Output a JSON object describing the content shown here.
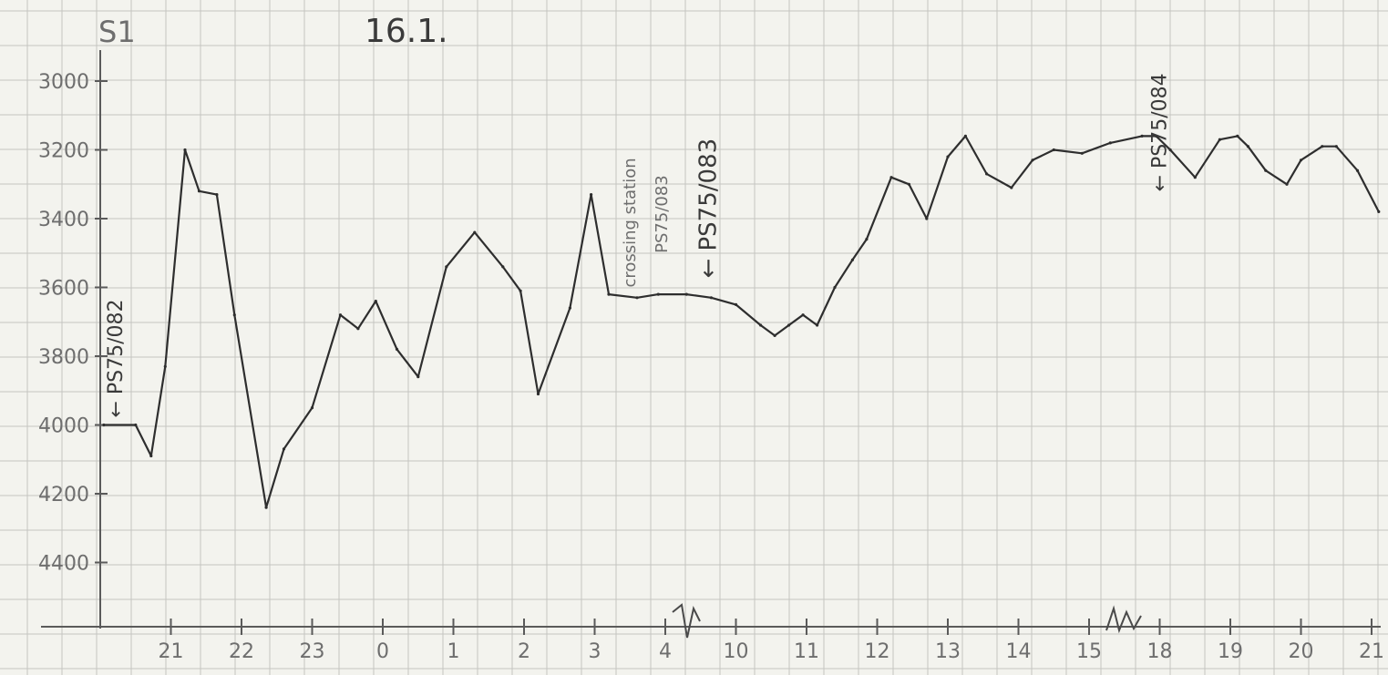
{
  "header": {
    "sheet_label": "S1",
    "date_label": "16.1."
  },
  "chart_data": {
    "type": "line",
    "ylabel": "",
    "xlabel": "",
    "y_axis": {
      "reversed": true,
      "ylim": [
        2900,
        4530
      ]
    },
    "yticks": [
      {
        "label": "3000",
        "value": 3000
      },
      {
        "label": "3200",
        "value": 3200
      },
      {
        "label": "3400",
        "value": 3400
      },
      {
        "label": "3600",
        "value": 3600
      },
      {
        "label": "3800",
        "value": 3800
      },
      {
        "label": "4000",
        "value": 4000
      },
      {
        "label": "4200",
        "value": 4200
      },
      {
        "label": "4400",
        "value": 4400
      }
    ],
    "x_axis": {
      "unit": "hour",
      "breaks_after": [
        "4",
        "15"
      ]
    },
    "xticks": [
      {
        "label": "21",
        "pos": 1
      },
      {
        "label": "22",
        "pos": 2
      },
      {
        "label": "23",
        "pos": 3
      },
      {
        "label": "0",
        "pos": 4
      },
      {
        "label": "1",
        "pos": 5
      },
      {
        "label": "2",
        "pos": 6
      },
      {
        "label": "3",
        "pos": 7
      },
      {
        "label": "4",
        "pos": 8
      },
      {
        "label": "10",
        "pos": 9
      },
      {
        "label": "11",
        "pos": 10
      },
      {
        "label": "12",
        "pos": 11
      },
      {
        "label": "13",
        "pos": 12
      },
      {
        "label": "14",
        "pos": 13
      },
      {
        "label": "15",
        "pos": 14
      },
      {
        "label": "18",
        "pos": 15
      },
      {
        "label": "19",
        "pos": 16
      },
      {
        "label": "20",
        "pos": 17
      },
      {
        "label": "21",
        "pos": 18
      }
    ],
    "series": [
      {
        "x": [
          0.05,
          0.5,
          0.72,
          0.92,
          1.2,
          1.4,
          1.65,
          1.9,
          2.35,
          2.6,
          3.0,
          3.4,
          3.65,
          3.9,
          4.2,
          4.5,
          4.9,
          5.3,
          5.7,
          5.95,
          6.2,
          6.65,
          6.95,
          7.2,
          7.6,
          7.9,
          8.3,
          8.65,
          9.0,
          9.35,
          9.55,
          9.75,
          9.95,
          10.15,
          10.4,
          10.65,
          10.85,
          11.2,
          11.45,
          11.7,
          12.0,
          12.25,
          12.55,
          12.9,
          13.2,
          13.5,
          13.9,
          14.3,
          14.75,
          14.95,
          15.15,
          15.5,
          15.85,
          16.1,
          16.25,
          16.5,
          16.8,
          17.0,
          17.3,
          17.5,
          17.8,
          18.1
        ],
        "y": [
          4000,
          4000,
          4090,
          3830,
          3200,
          3320,
          3330,
          3680,
          4240,
          4070,
          3950,
          3680,
          3720,
          3640,
          3780,
          3860,
          3540,
          3440,
          3540,
          3610,
          3910,
          3660,
          3330,
          3620,
          3630,
          3620,
          3620,
          3630,
          3650,
          3710,
          3740,
          3710,
          3680,
          3710,
          3600,
          3520,
          3460,
          3280,
          3300,
          3400,
          3220,
          3160,
          3270,
          3310,
          3230,
          3200,
          3210,
          3180,
          3160,
          3160,
          3200,
          3280,
          3170,
          3160,
          3190,
          3260,
          3300,
          3230,
          3190,
          3190,
          3260,
          3380
        ]
      }
    ],
    "annotations": [
      {
        "text": "← PS75/082",
        "x": 0.05,
        "y": 4000
      },
      {
        "text": "crossing station",
        "x": 7.7,
        "y": 3600
      },
      {
        "text": "PS75/083",
        "x": 8.1,
        "y": 3500
      },
      {
        "text": "← PS75/083",
        "x": 8.3,
        "y": 3600
      },
      {
        "text": "← PS75/084",
        "x": 14.6,
        "y": 3380
      }
    ]
  }
}
